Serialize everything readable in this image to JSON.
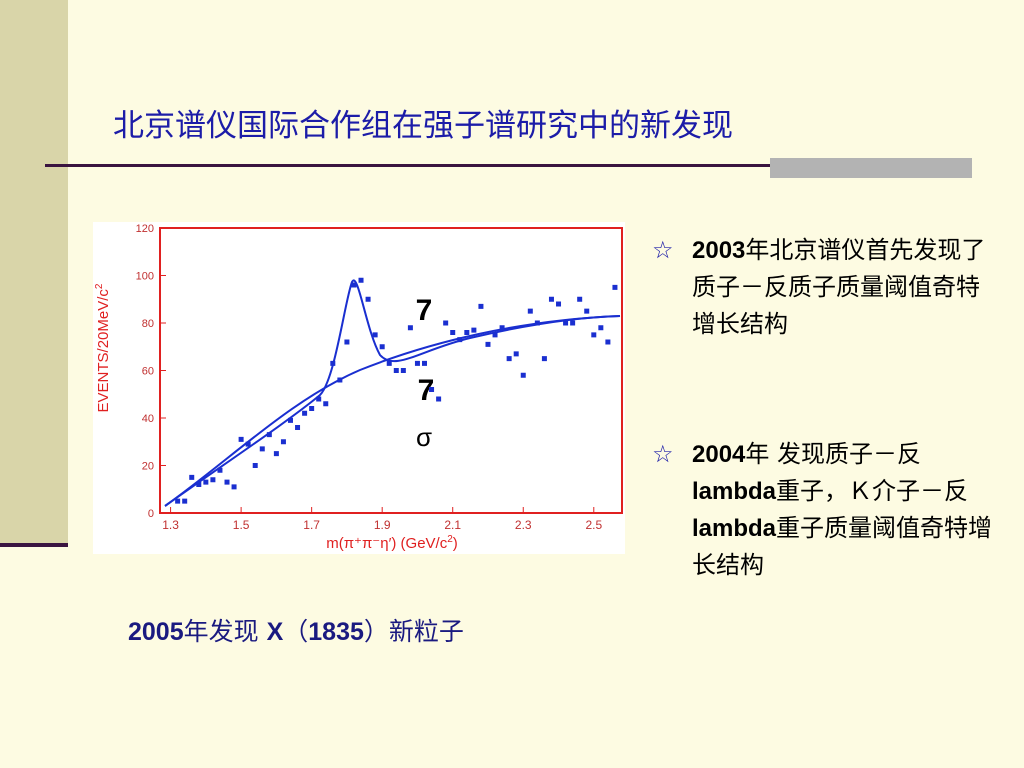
{
  "slide": {
    "title": "北京谱仪国际合作组在强子谱研究中的新发现",
    "figure": {
      "y_label": "EVENTS/20MeV/c",
      "y_label_sup": "2",
      "x_label": "m(π⁺π⁻η′)  (GeV/c",
      "x_label_sup": "2",
      "x_label_end": ")",
      "xlim": [
        1.27,
        2.58
      ],
      "ylim": [
        0,
        120
      ],
      "xticks": [
        1.3,
        1.5,
        1.7,
        1.9,
        2.1,
        2.3,
        2.5
      ],
      "yticks": [
        0,
        20,
        40,
        60,
        80,
        100,
        120
      ],
      "x": [
        1.32,
        1.34,
        1.36,
        1.38,
        1.4,
        1.42,
        1.44,
        1.46,
        1.48,
        1.5,
        1.52,
        1.54,
        1.56,
        1.58,
        1.6,
        1.62,
        1.64,
        1.66,
        1.68,
        1.7,
        1.72,
        1.74,
        1.76,
        1.78,
        1.8,
        1.82,
        1.84,
        1.86,
        1.88,
        1.9,
        1.92,
        1.94,
        1.96,
        1.98,
        2.0,
        2.02,
        2.04,
        2.06,
        2.08,
        2.1,
        2.12,
        2.14,
        2.16,
        2.18,
        2.2,
        2.22,
        2.24,
        2.26,
        2.28,
        2.3,
        2.32,
        2.34,
        2.36,
        2.38,
        2.4,
        2.42,
        2.44,
        2.46,
        2.48,
        2.5,
        2.52,
        2.54,
        2.56
      ],
      "y": [
        5,
        5,
        15,
        12,
        13,
        14,
        18,
        13,
        11,
        31,
        29,
        20,
        27,
        33,
        25,
        30,
        39,
        36,
        42,
        44,
        48,
        46,
        63,
        56,
        72,
        96,
        98,
        90,
        75,
        70,
        63,
        60,
        60,
        78,
        63,
        63,
        52,
        48,
        80,
        76,
        73,
        76,
        77,
        87,
        71,
        75,
        78,
        65,
        67,
        58,
        85,
        80,
        65,
        90,
        88,
        80,
        80,
        90,
        85,
        75,
        78,
        72,
        95
      ],
      "annotations": [
        "7",
        "7",
        "σ"
      ]
    },
    "bullet": "☆",
    "items": [
      [
        "2003",
        "年北京谱仪首先发现了质子－反质子质量阈值奇特增长结构"
      ],
      [
        "2004",
        "年 发现质子－反",
        "lambda",
        "重子，Ｋ介子－反　",
        "lambda",
        "重子质量阈值奇特增长结构"
      ]
    ],
    "caption": [
      "2005",
      "年发现 ",
      "X",
      "（",
      "1835",
      "）新粒子"
    ]
  }
}
